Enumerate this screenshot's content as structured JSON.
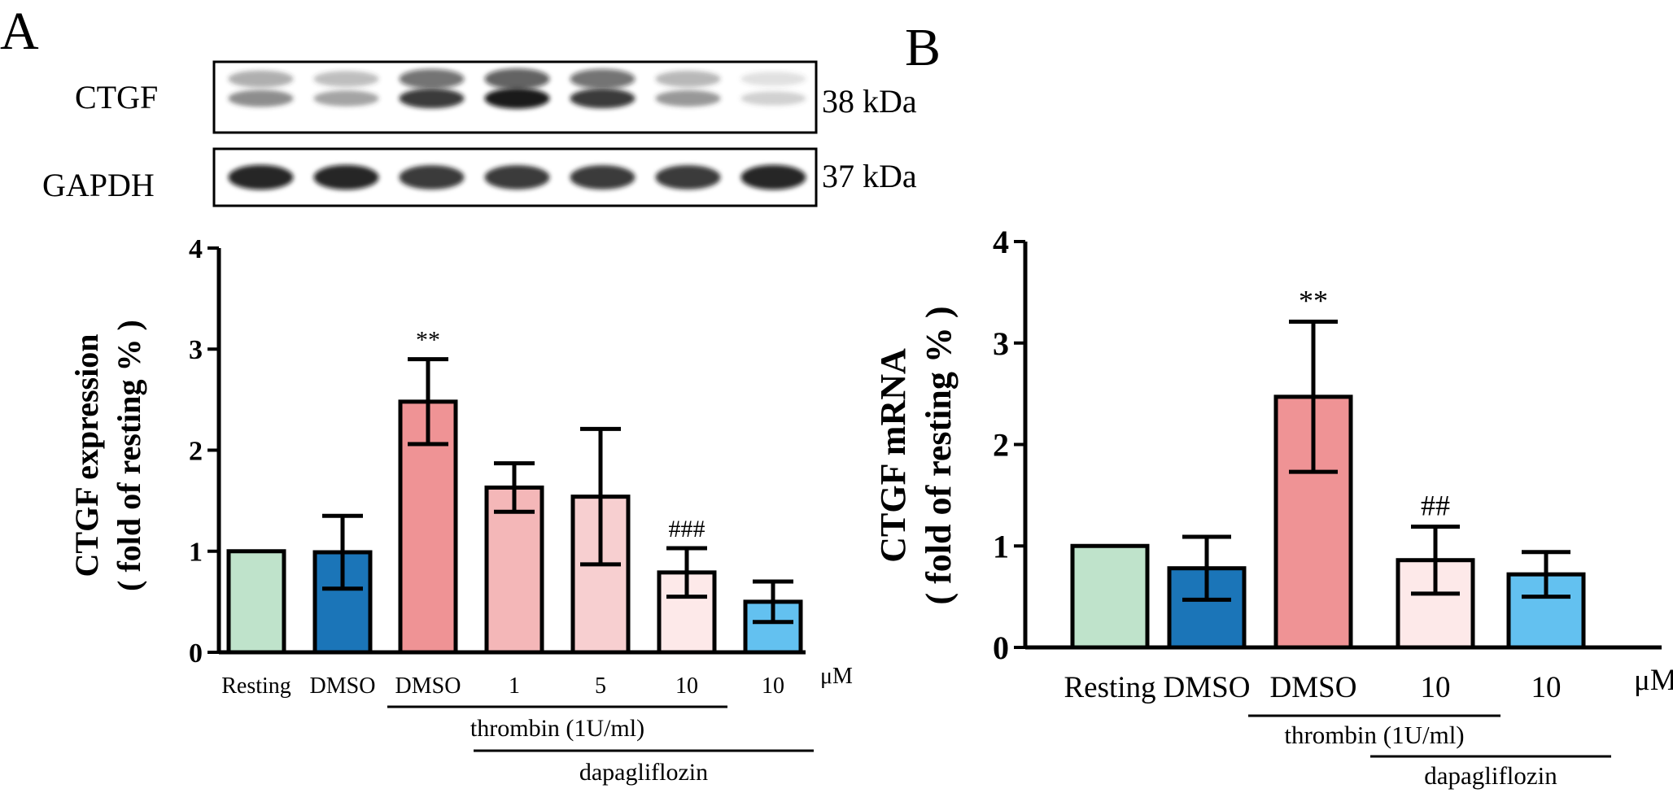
{
  "panels": {
    "a": "A",
    "b": "B"
  },
  "blot": {
    "rows": [
      {
        "protein": "CTGF",
        "mw": "38 kDa",
        "intensity": [
          0.55,
          0.45,
          0.85,
          0.95,
          0.85,
          0.5,
          0.25
        ]
      },
      {
        "protein": "GAPDH",
        "mw": "37 kDa",
        "intensity": [
          0.9,
          0.9,
          0.85,
          0.85,
          0.85,
          0.85,
          0.9
        ]
      }
    ]
  },
  "colors": {
    "resting": "#bfe3cb",
    "dmso": "#1b75b8",
    "thrombin": "#ef9395",
    "dapa1": "#f4b7b8",
    "dapa5": "#f7cfd0",
    "dapa10": "#fde9e9",
    "dapa_only": "#63c1f0"
  },
  "chart_data": [
    {
      "type": "bar",
      "ylabel": "CTGF expression",
      "ylabel2": "( fold of resting % )",
      "ylim": [
        0,
        4
      ],
      "yticks": [
        "0",
        "1",
        "2",
        "3",
        "4"
      ],
      "categories": [
        "Resting",
        "DMSO",
        "DMSO",
        "1",
        "5",
        "10",
        "10"
      ],
      "unit": "μM",
      "values": [
        1.0,
        0.99,
        2.48,
        1.63,
        1.54,
        0.79,
        0.5
      ],
      "errors": [
        0,
        0.36,
        0.42,
        0.24,
        0.67,
        0.24,
        0.2
      ],
      "colors": [
        "#bfe3cb",
        "#1b75b8",
        "#ef9395",
        "#f4b7b8",
        "#f7cfd0",
        "#fde9e9",
        "#63c1f0"
      ],
      "annotations": [
        "",
        "",
        "**",
        "",
        "",
        "###",
        ""
      ],
      "groups": [
        {
          "label": "thrombin (1U/ml)",
          "from": 2,
          "to": 5
        },
        {
          "label": "dapagliflozin",
          "from": 3,
          "to": 6
        }
      ]
    },
    {
      "type": "bar",
      "ylabel": "CTGF mRNA",
      "ylabel2": "( fold of resting % )",
      "ylim": [
        0,
        4
      ],
      "yticks": [
        "0",
        "1",
        "2",
        "3",
        "4"
      ],
      "categories": [
        "Resting",
        "DMSO",
        "DMSO",
        "10",
        "10"
      ],
      "unit": "μM",
      "values": [
        1.0,
        0.78,
        2.47,
        0.86,
        0.72
      ],
      "errors": [
        0,
        0.31,
        0.74,
        0.33,
        0.22
      ],
      "colors": [
        "#bfe3cb",
        "#1b75b8",
        "#ef9395",
        "#fde9e9",
        "#63c1f0"
      ],
      "annotations": [
        "",
        "",
        "**",
        "##",
        ""
      ],
      "groups": [
        {
          "label": "thrombin (1U/ml)",
          "from": 2,
          "to": 3
        },
        {
          "label": "dapagliflozin",
          "from": 3,
          "to": 4
        }
      ]
    }
  ]
}
